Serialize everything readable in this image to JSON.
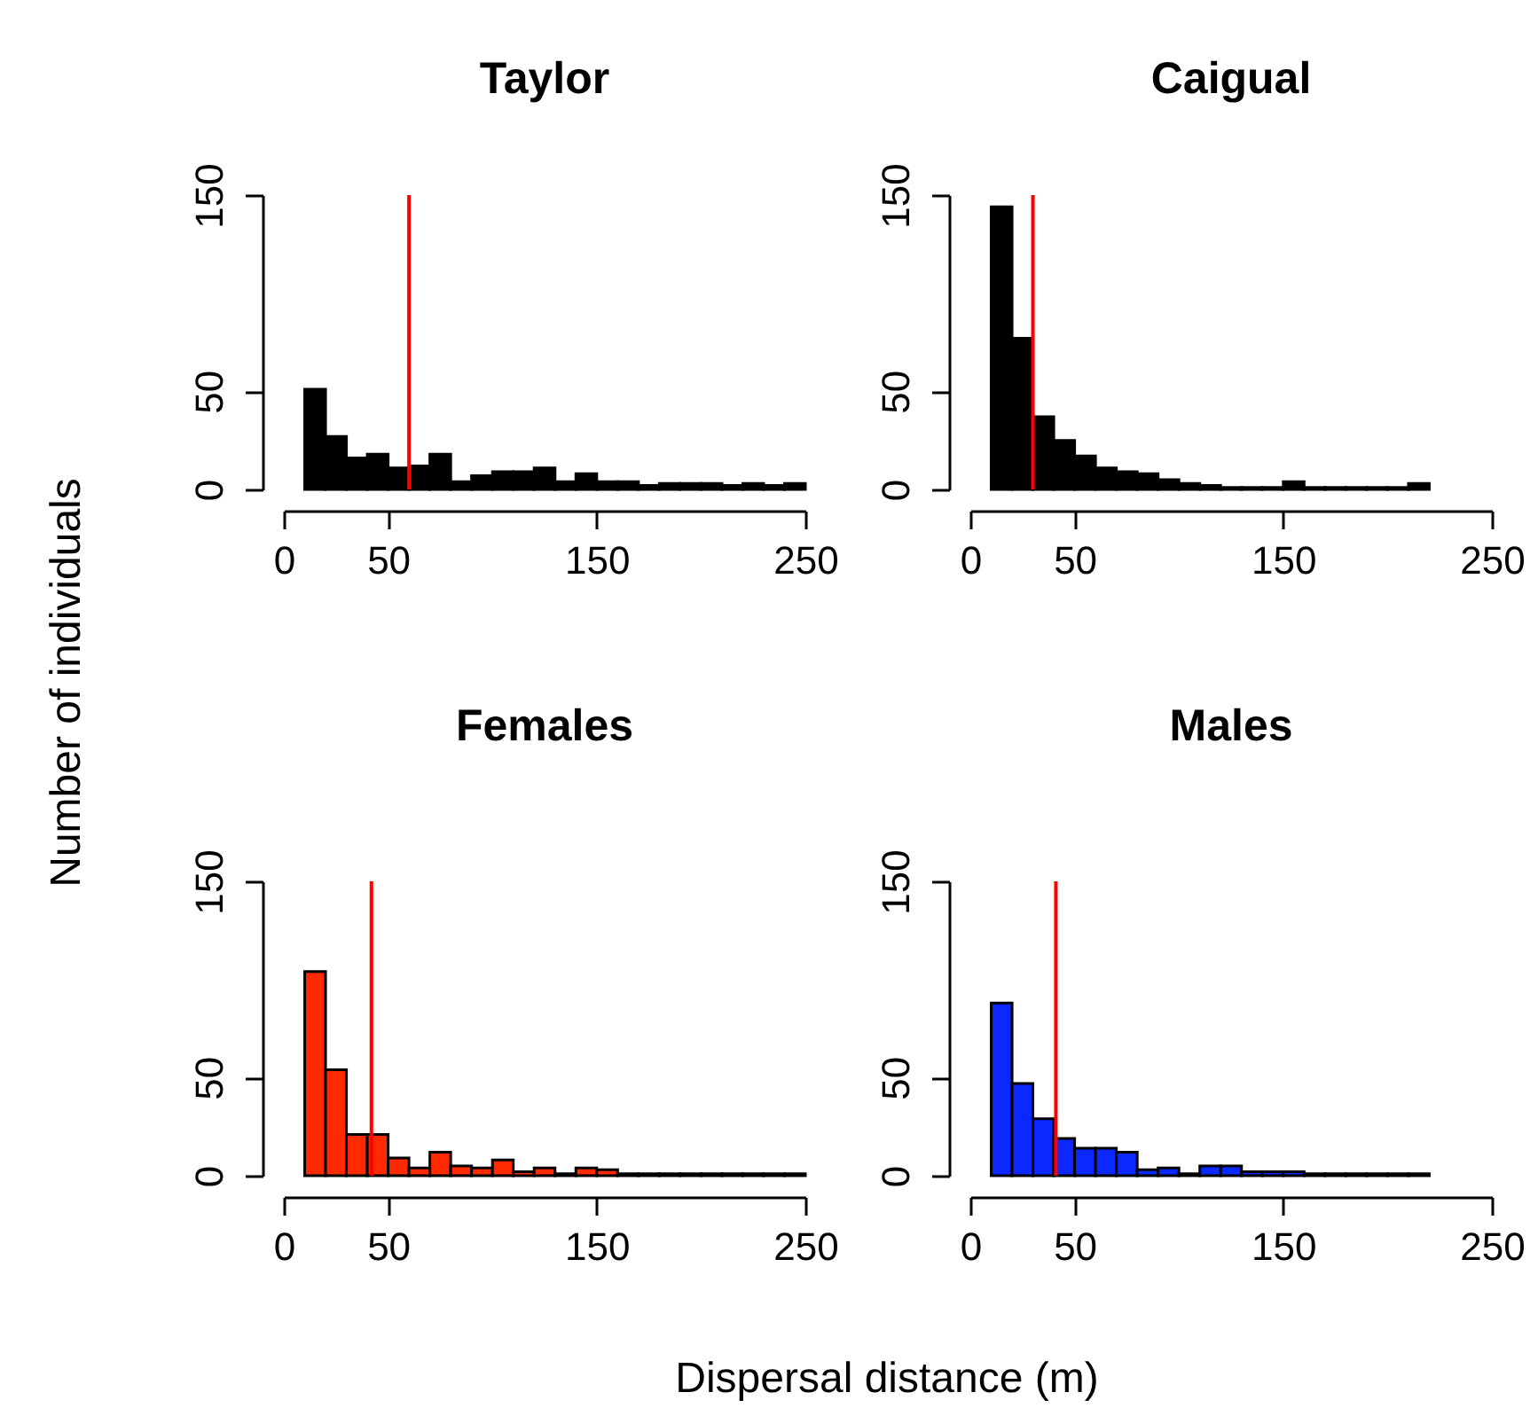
{
  "chart_data": [
    {
      "type": "histogram",
      "title": "Taylor",
      "ylabel": "Number of individuals",
      "bins": [
        10,
        20,
        30,
        40,
        50,
        60,
        70,
        80,
        90,
        100,
        110,
        120,
        130,
        140,
        150,
        160,
        170,
        180,
        190,
        200,
        210,
        220,
        230,
        240,
        250
      ],
      "values": [
        51,
        27,
        16,
        18,
        11,
        12,
        18,
        4,
        7,
        9,
        9,
        11,
        4,
        8,
        4,
        4,
        2,
        3,
        3,
        3,
        2,
        3,
        2,
        3
      ],
      "color": "#000000",
      "xlim": [
        0,
        250
      ],
      "xticks": [
        0,
        50,
        150,
        250
      ],
      "ylim": [
        0,
        150
      ],
      "yticks": [
        0,
        50,
        150
      ],
      "ref_lines": [
        {
          "axis": "x",
          "value": 60,
          "color": "#ff0000"
        }
      ]
    },
    {
      "type": "histogram",
      "title": "Caigual",
      "bins": [
        10,
        20,
        30,
        40,
        50,
        60,
        70,
        80,
        90,
        100,
        110,
        120,
        130,
        140,
        150,
        160,
        170,
        180,
        190,
        200,
        210,
        220
      ],
      "values": [
        144,
        77,
        37,
        25,
        17,
        11,
        9,
        8,
        5,
        3,
        2,
        1,
        1,
        1,
        4,
        1,
        1,
        1,
        1,
        1,
        3
      ],
      "color": "#000000",
      "xlim": [
        0,
        250
      ],
      "xticks": [
        0,
        50,
        150,
        250
      ],
      "ylim": [
        0,
        150
      ],
      "yticks": [
        0,
        50,
        150
      ],
      "ref_lines": [
        {
          "axis": "x",
          "value": 30,
          "color": "#ff0000"
        }
      ]
    },
    {
      "type": "histogram",
      "title": "Females",
      "xlabel": "Dispersal distance (m)",
      "bins": [
        10,
        20,
        30,
        40,
        50,
        60,
        70,
        80,
        90,
        100,
        110,
        120,
        130,
        140,
        150,
        160,
        170,
        180,
        190,
        200,
        210,
        220,
        230,
        240,
        250
      ],
      "values": [
        104,
        54,
        21,
        21,
        9,
        4,
        12,
        5,
        4,
        8,
        2,
        4,
        1,
        4,
        3,
        1,
        1,
        1,
        1,
        1,
        1,
        1,
        1,
        1
      ],
      "color": "#ff2a00",
      "xlim": [
        0,
        250
      ],
      "xticks": [
        0,
        50,
        150,
        250
      ],
      "ylim": [
        0,
        150
      ],
      "yticks": [
        0,
        50,
        150
      ],
      "ref_lines": [
        {
          "axis": "x",
          "value": 42,
          "color": "#ff0000"
        }
      ]
    },
    {
      "type": "histogram",
      "title": "Males",
      "bins": [
        10,
        20,
        30,
        40,
        50,
        60,
        70,
        80,
        90,
        100,
        110,
        120,
        130,
        140,
        150,
        160,
        170,
        180,
        190,
        200,
        210,
        220
      ],
      "values": [
        88,
        47,
        29,
        19,
        14,
        14,
        12,
        3,
        4,
        1,
        5,
        5,
        2,
        2,
        2,
        1,
        1,
        1,
        1,
        1,
        1
      ],
      "color": "#0a28ff",
      "xlim": [
        0,
        250
      ],
      "xticks": [
        0,
        50,
        150,
        250
      ],
      "ylim": [
        0,
        150
      ],
      "yticks": [
        0,
        50,
        150
      ],
      "ref_lines": [
        {
          "axis": "x",
          "value": 41,
          "color": "#ff0000"
        }
      ]
    }
  ]
}
